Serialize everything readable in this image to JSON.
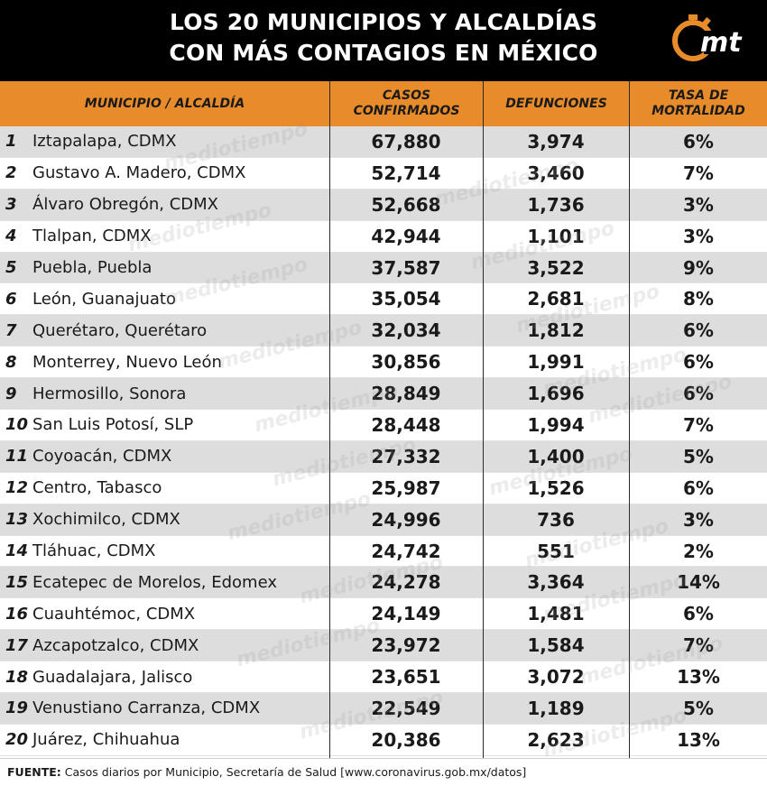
{
  "title": {
    "line1": "LOS 20 MUNICIPIOS Y ALCALDÍAS",
    "line2": "CON MÁS CONTAGIOS EN MÉXICO"
  },
  "logo": {
    "text": "mt",
    "icon": "stopwatch-logo-icon",
    "color": "#e88b2a"
  },
  "watermark": {
    "text": "mediotiempo"
  },
  "colors": {
    "header_bg": "#000000",
    "column_header_bg": "#e88b2a",
    "row_alt_bg": "#dddddd"
  },
  "columns": {
    "municipio": "MUNICIPIO / ALCALDÍA",
    "casos_line1": "CASOS",
    "casos_line2": "CONFIRMADOS",
    "defunciones": "DEFUNCIONES",
    "tasa_line1": "TASA DE",
    "tasa_line2": "MORTALIDAD"
  },
  "chart_data": {
    "type": "table",
    "columns": [
      "MUNICIPIO / ALCALDÍA",
      "CASOS CONFIRMADOS",
      "DEFUNCIONES",
      "TASA DE MORTALIDAD"
    ],
    "rows": [
      {
        "rank": "1",
        "name": "Iztapalapa, CDMX",
        "cases": "67,880",
        "deaths": "3,974",
        "rate": "6%"
      },
      {
        "rank": "2",
        "name": "Gustavo A. Madero, CDMX",
        "cases": "52,714",
        "deaths": "3,460",
        "rate": "7%"
      },
      {
        "rank": "3",
        "name": "Álvaro Obregón, CDMX",
        "cases": "52,668",
        "deaths": "1,736",
        "rate": "3%"
      },
      {
        "rank": "4",
        "name": "Tlalpan, CDMX",
        "cases": "42,944",
        "deaths": "1,101",
        "rate": "3%"
      },
      {
        "rank": "5",
        "name": "Puebla, Puebla",
        "cases": "37,587",
        "deaths": "3,522",
        "rate": "9%"
      },
      {
        "rank": "6",
        "name": "León, Guanajuato",
        "cases": "35,054",
        "deaths": "2,681",
        "rate": "8%"
      },
      {
        "rank": "7",
        "name": "Querétaro, Querétaro",
        "cases": "32,034",
        "deaths": "1,812",
        "rate": "6%"
      },
      {
        "rank": "8",
        "name": "Monterrey, Nuevo León",
        "cases": "30,856",
        "deaths": "1,991",
        "rate": "6%"
      },
      {
        "rank": "9",
        "name": "Hermosillo, Sonora",
        "cases": "28,849",
        "deaths": "1,696",
        "rate": "6%"
      },
      {
        "rank": "10",
        "name": "San Luis Potosí, SLP",
        "cases": "28,448",
        "deaths": "1,994",
        "rate": "7%"
      },
      {
        "rank": "11",
        "name": "Coyoacán, CDMX",
        "cases": "27,332",
        "deaths": "1,400",
        "rate": "5%"
      },
      {
        "rank": "12",
        "name": "Centro, Tabasco",
        "cases": "25,987",
        "deaths": "1,526",
        "rate": "6%"
      },
      {
        "rank": "13",
        "name": "Xochimilco, CDMX",
        "cases": "24,996",
        "deaths": "736",
        "rate": "3%"
      },
      {
        "rank": "14",
        "name": "Tláhuac, CDMX",
        "cases": "24,742",
        "deaths": "551",
        "rate": "2%"
      },
      {
        "rank": "15",
        "name": "Ecatepec de Morelos, Edomex",
        "cases": "24,278",
        "deaths": "3,364",
        "rate": "14%"
      },
      {
        "rank": "16",
        "name": "Cuauhtémoc, CDMX",
        "cases": "24,149",
        "deaths": "1,481",
        "rate": "6%"
      },
      {
        "rank": "17",
        "name": "Azcapotzalco, CDMX",
        "cases": "23,972",
        "deaths": "1,584",
        "rate": "7%"
      },
      {
        "rank": "18",
        "name": "Guadalajara, Jalisco",
        "cases": "23,651",
        "deaths": "3,072",
        "rate": "13%"
      },
      {
        "rank": "19",
        "name": "Venustiano Carranza, CDMX",
        "cases": "22,549",
        "deaths": "1,189",
        "rate": "5%"
      },
      {
        "rank": "20",
        "name": "Juárez, Chihuahua",
        "cases": "20,386",
        "deaths": "2,623",
        "rate": "13%"
      }
    ]
  },
  "footer": {
    "label": "FUENTE:",
    "text": "Casos diarios por Municipio, Secretaría de Salud [www.coronavirus.gob.mx/datos]"
  }
}
